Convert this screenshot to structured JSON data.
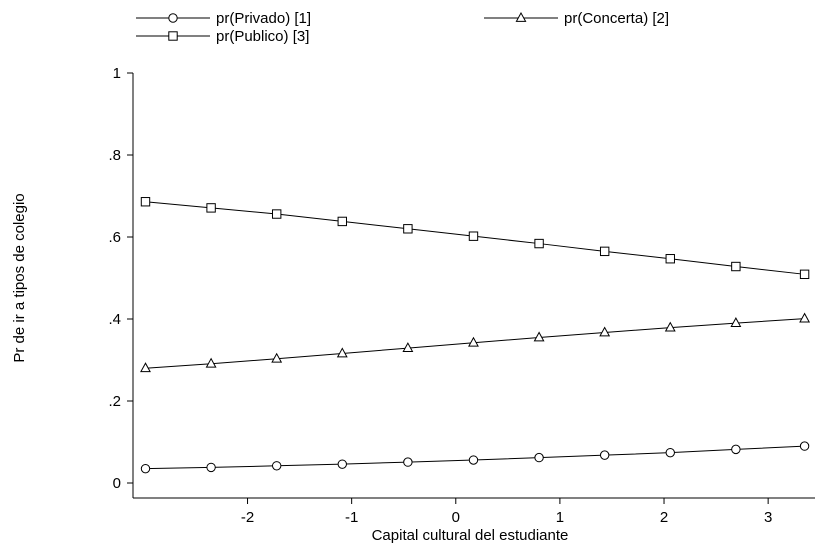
{
  "chart_data": {
    "type": "line",
    "title": "",
    "xlabel": "Capital cultural del estudiante",
    "ylabel": "Pr de ir a tipos de colegio",
    "xlim": [
      -3.1,
      3.45
    ],
    "ylim": [
      0,
      1
    ],
    "xticks": [
      -2,
      -1,
      0,
      1,
      2,
      3
    ],
    "xtick_labels": [
      "-2",
      "-1",
      "0",
      "1",
      "2",
      "3"
    ],
    "yticks": [
      0,
      0.2,
      0.4,
      0.6,
      0.8,
      1
    ],
    "ytick_labels": [
      "0",
      ".2",
      ".4",
      ".6",
      ".8",
      "1"
    ],
    "grid": false,
    "legend_position": "top",
    "x": [
      -2.98,
      -2.35,
      -1.72,
      -1.09,
      -0.46,
      0.17,
      0.8,
      1.43,
      2.06,
      2.69,
      3.35
    ],
    "series": [
      {
        "name": "pr(Privado) [1]",
        "marker": "circle",
        "values": [
          0.035,
          0.038,
          0.042,
          0.046,
          0.051,
          0.056,
          0.062,
          0.068,
          0.074,
          0.082,
          0.09
        ]
      },
      {
        "name": "pr(Concerta) [2]",
        "marker": "triangle",
        "values": [
          0.28,
          0.291,
          0.303,
          0.316,
          0.329,
          0.342,
          0.355,
          0.367,
          0.379,
          0.39,
          0.401
        ]
      },
      {
        "name": "pr(Publico) [3]",
        "marker": "square",
        "values": [
          0.686,
          0.671,
          0.656,
          0.638,
          0.62,
          0.602,
          0.584,
          0.565,
          0.547,
          0.528,
          0.509
        ]
      }
    ]
  }
}
